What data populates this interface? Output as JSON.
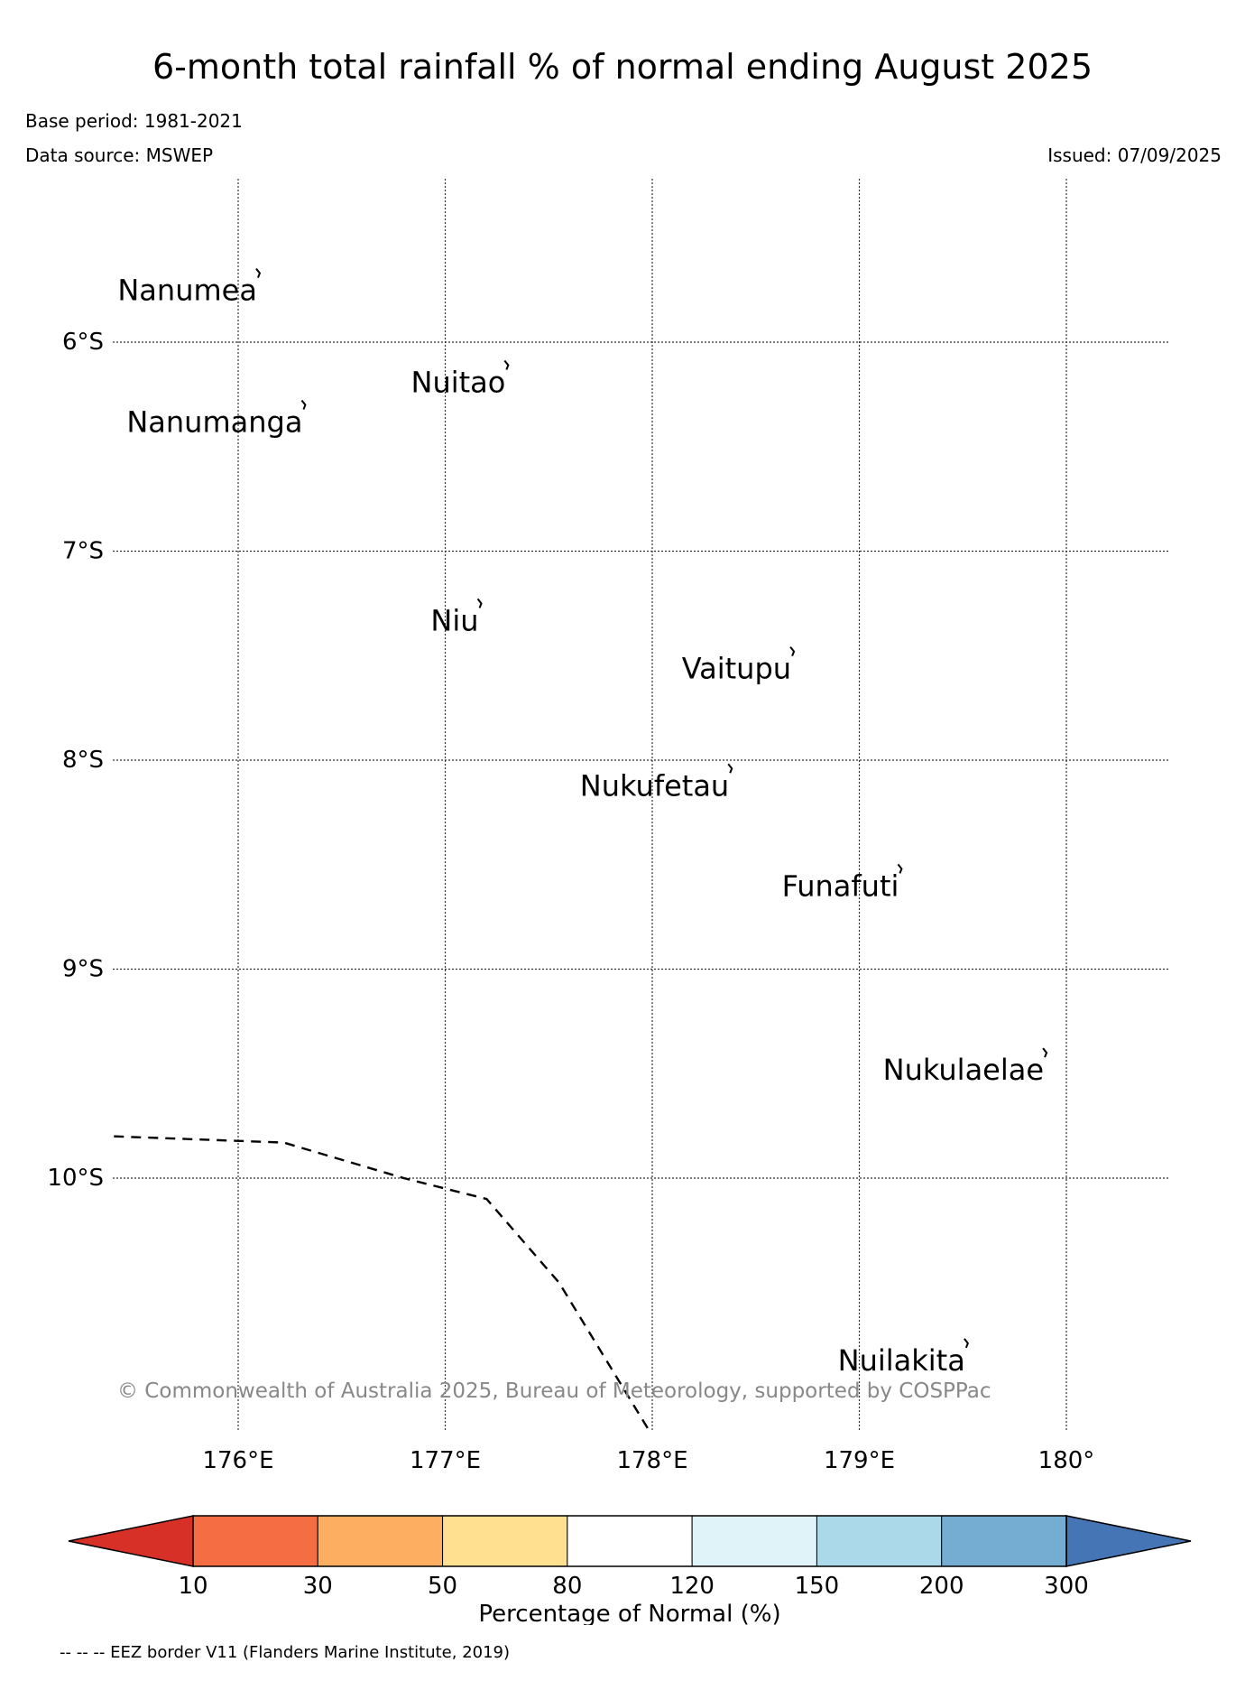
{
  "header": {
    "title": "6-month total rainfall % of normal ending August 2025",
    "base_period": "Base period: 1981-2021",
    "data_source": "Data source: MSWEP",
    "issued": "Issued: 07/09/2025"
  },
  "map": {
    "lon_range": [
      175.4,
      180.5
    ],
    "lat_range": [
      -5.2,
      -11.2
    ],
    "lon_ticks": [
      {
        "value": 176,
        "label": "176°E"
      },
      {
        "value": 177,
        "label": "177°E"
      },
      {
        "value": 178,
        "label": "178°E"
      },
      {
        "value": 179,
        "label": "179°E"
      },
      {
        "value": 180,
        "label": "180°"
      }
    ],
    "lat_ticks": [
      {
        "value": -6,
        "label": "6°S"
      },
      {
        "value": -7,
        "label": "7°S"
      },
      {
        "value": -8,
        "label": "8°S"
      },
      {
        "value": -9,
        "label": "9°S"
      },
      {
        "value": -10,
        "label": "10°S"
      }
    ],
    "islands": [
      {
        "name": "Nanumea",
        "lon": 176.1,
        "lat": -5.67
      },
      {
        "name": "Nuitao",
        "lon": 177.3,
        "lat": -6.11
      },
      {
        "name": "Nanumanga",
        "lon": 176.32,
        "lat": -6.3
      },
      {
        "name": "Niu",
        "lon": 177.17,
        "lat": -7.25
      },
      {
        "name": "Vaitupu",
        "lon": 178.68,
        "lat": -7.48
      },
      {
        "name": "Nukufetau",
        "lon": 178.38,
        "lat": -8.04
      },
      {
        "name": "Funafuti",
        "lon": 179.2,
        "lat": -8.52
      },
      {
        "name": "Nukulaelae",
        "lon": 179.9,
        "lat": -9.4
      },
      {
        "name": "Nuilakita",
        "lon": 179.52,
        "lat": -10.79
      }
    ],
    "eez_border": [
      [
        175.4,
        -9.8
      ],
      [
        176.22,
        -9.83
      ],
      [
        176.8,
        -10.0
      ],
      [
        177.2,
        -10.1
      ],
      [
        177.55,
        -10.5
      ],
      [
        177.98,
        -11.2
      ]
    ],
    "copyright": "© Commonwealth of Australia 2025, Bureau of Meteorology, supported by COSPPac"
  },
  "legend": {
    "colors": [
      "#d73027",
      "#f46d43",
      "#fdae61",
      "#fee090",
      "#ffffff",
      "#e0f3f8",
      "#abd9e9",
      "#74add1",
      "#4575b4"
    ],
    "tick_labels": [
      "10",
      "30",
      "50",
      "80",
      "120",
      "150",
      "200",
      "300"
    ],
    "label": "Percentage of Normal (%)"
  },
  "footnote": "-- -- -- EEZ border V11 (Flanders Marine Institute, 2019)"
}
